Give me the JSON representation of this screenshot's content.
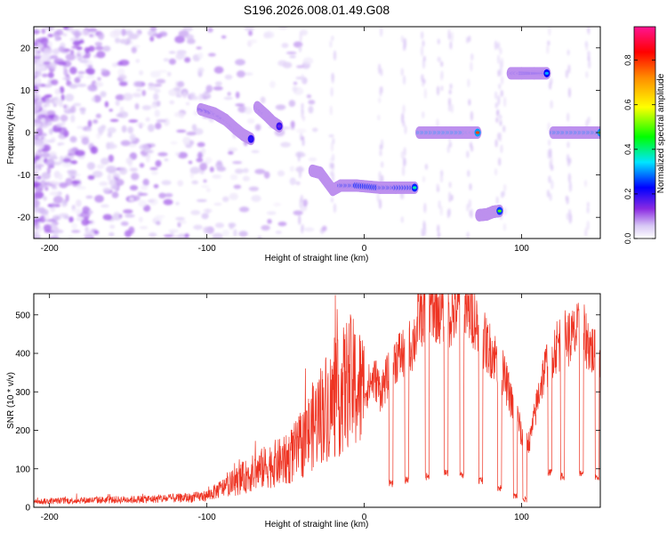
{
  "title": "S196.2026.008.01.49.G08",
  "colors": {
    "snr_line": "#ee3322",
    "colormap": [
      "#ffffff",
      "#d9c6f5",
      "#8a2be2",
      "#0000ff",
      "#00e5ff",
      "#00ff00",
      "#ffff00",
      "#ff8c00",
      "#ff0000",
      "#ff1493"
    ]
  },
  "chart_data": [
    {
      "type": "heatmap",
      "xlabel": "Height of straight line (km)",
      "ylabel": "Frequency (Hz)",
      "xlim": [
        -210,
        150
      ],
      "ylim": [
        -25,
        25
      ],
      "x_ticks": [
        -200,
        -100,
        0,
        100
      ],
      "y_ticks": [
        -20,
        -10,
        0,
        10,
        20
      ],
      "colorbar": {
        "label": "Normalized spectral amplitude",
        "range": [
          0,
          0.95
        ],
        "ticks": [
          0.0,
          0.2,
          0.4,
          0.6,
          0.8
        ]
      },
      "tracks": [
        {
          "x": [
            -104,
            -95,
            -88,
            -82,
            -77,
            -72
          ],
          "y": [
            5.5,
            4.5,
            3,
            1,
            -0.5,
            -1.5
          ],
          "amplitude": 0.3
        },
        {
          "x": [
            -68,
            -62,
            -58,
            -54
          ],
          "y": [
            6,
            4,
            2.5,
            1.5
          ],
          "amplitude": 0.25
        },
        {
          "x": [
            -33,
            -28,
            -25,
            -20,
            -15,
            -5,
            10,
            20,
            32
          ],
          "y": [
            -9,
            -9.5,
            -11,
            -13.5,
            -12.5,
            -12.5,
            -13,
            -13,
            -13
          ],
          "amplitude": 0.55
        },
        {
          "x": [
            35,
            45,
            55,
            65,
            72
          ],
          "y": [
            0,
            0,
            0,
            0,
            0
          ],
          "amplitude": 0.85
        },
        {
          "x": [
            73,
            78,
            82,
            86
          ],
          "y": [
            -19.5,
            -19.3,
            -18.7,
            -18.5
          ],
          "amplitude": 0.6
        },
        {
          "x": [
            93,
            100,
            108,
            116
          ],
          "y": [
            14,
            14,
            14,
            14
          ],
          "amplitude": 0.45
        },
        {
          "x": [
            120,
            130,
            140,
            150
          ],
          "y": [
            0,
            0,
            0,
            0
          ],
          "amplitude": 0.8
        }
      ]
    },
    {
      "type": "line",
      "xlabel": "Height of straight line (km)",
      "ylabel": "SNR (10 * v/v)",
      "xlim": [
        -210,
        150
      ],
      "ylim": [
        0,
        555
      ],
      "x_ticks": [
        -200,
        -100,
        0,
        100
      ],
      "y_ticks": [
        0,
        100,
        200,
        300,
        400,
        500
      ],
      "series": [
        {
          "x": [
            -210,
            -180,
            -150,
            -130,
            -110,
            -100,
            -90,
            -80,
            -70,
            -60,
            -50,
            -40,
            -30,
            -25,
            -20,
            -15,
            -10,
            -5,
            0,
            5,
            8,
            10,
            15,
            20,
            25,
            30,
            33,
            35,
            38,
            42,
            45,
            50,
            55,
            60,
            65,
            70,
            72,
            75,
            78,
            82,
            85,
            88,
            92,
            95,
            98,
            100,
            105,
            108,
            112,
            118,
            122,
            128,
            132,
            138,
            142,
            146,
            148,
            150
          ],
          "y": [
            15,
            18,
            20,
            22,
            25,
            30,
            50,
            70,
            90,
            110,
            120,
            160,
            230,
            260,
            270,
            290,
            330,
            310,
            300,
            330,
            330,
            300,
            340,
            390,
            400,
            420,
            450,
            500,
            510,
            530,
            520,
            510,
            500,
            520,
            510,
            500,
            470,
            440,
            420,
            400,
            380,
            350,
            300,
            250,
            230,
            180,
            170,
            230,
            320,
            400,
            420,
            440,
            440,
            460,
            430,
            400,
            380,
            400
          ],
          "dips": [
            {
              "x": 17,
              "y": 50
            },
            {
              "x": 27,
              "y": 60
            },
            {
              "x": 40,
              "y": 70
            },
            {
              "x": 52,
              "y": 80
            },
            {
              "x": 62,
              "y": 75
            },
            {
              "x": 74,
              "y": 60
            },
            {
              "x": 86,
              "y": 40
            },
            {
              "x": 96,
              "y": 20
            },
            {
              "x": 102,
              "y": 10
            },
            {
              "x": 118,
              "y": 80
            },
            {
              "x": 126,
              "y": 70
            },
            {
              "x": 138,
              "y": 80
            },
            {
              "x": 148,
              "y": 70
            }
          ]
        }
      ]
    }
  ]
}
